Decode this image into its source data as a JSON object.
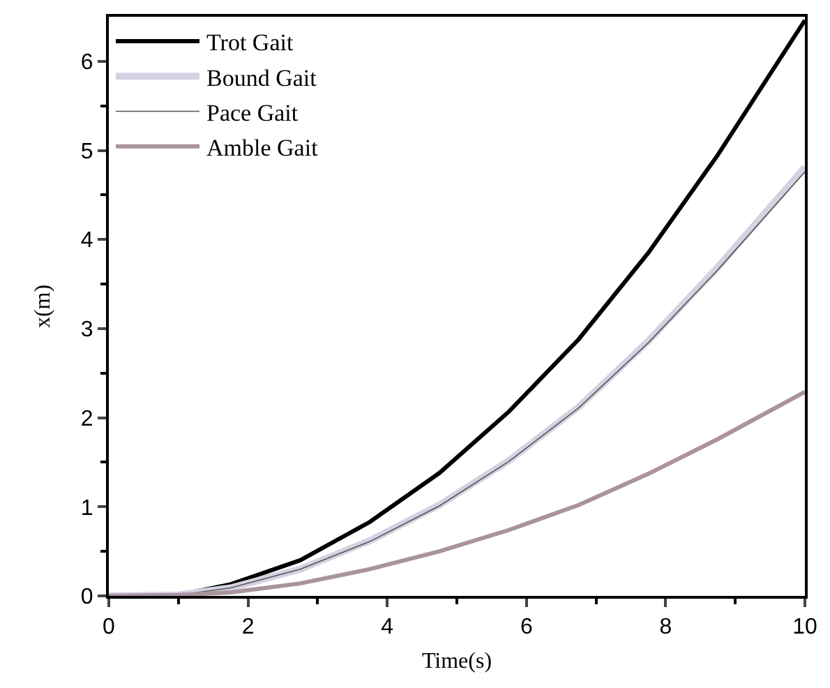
{
  "chart_data": {
    "type": "line",
    "xlabel": "Time(s)",
    "ylabel": "x(m)",
    "xlim": [
      0,
      10
    ],
    "ylim": [
      0,
      6.5
    ],
    "xticks": [
      0,
      2,
      4,
      6,
      8,
      10
    ],
    "yticks": [
      0,
      1,
      2,
      3,
      4,
      5,
      6
    ],
    "grid": false,
    "legend": "top left",
    "marker": "none",
    "line_style": "solid",
    "x": [
      0,
      1,
      1.75,
      2.75,
      3.75,
      4.75,
      5.75,
      6.75,
      7.75,
      8.75,
      10
    ],
    "series": [
      {
        "name": "Trot Gait",
        "color": "#000000",
        "values": [
          0,
          0.01,
          0.13,
          0.4,
          0.83,
          1.38,
          2.07,
          2.88,
          3.85,
          4.95,
          6.46
        ]
      },
      {
        "name": "Bound Gait",
        "color": "#d4d2e2",
        "values": [
          0,
          0.01,
          0.09,
          0.3,
          0.62,
          1.02,
          1.52,
          2.12,
          2.86,
          3.69,
          4.81
        ]
      },
      {
        "name": "Pace Gait",
        "color": "#555555",
        "values": [
          0,
          0.01,
          0.09,
          0.3,
          0.61,
          1.01,
          1.51,
          2.11,
          2.84,
          3.66,
          4.76
        ]
      },
      {
        "name": "Amble Gait",
        "color": "#a8939e",
        "values": [
          0,
          0.01,
          0.04,
          0.14,
          0.3,
          0.5,
          0.74,
          1.02,
          1.37,
          1.76,
          2.29
        ]
      }
    ]
  }
}
